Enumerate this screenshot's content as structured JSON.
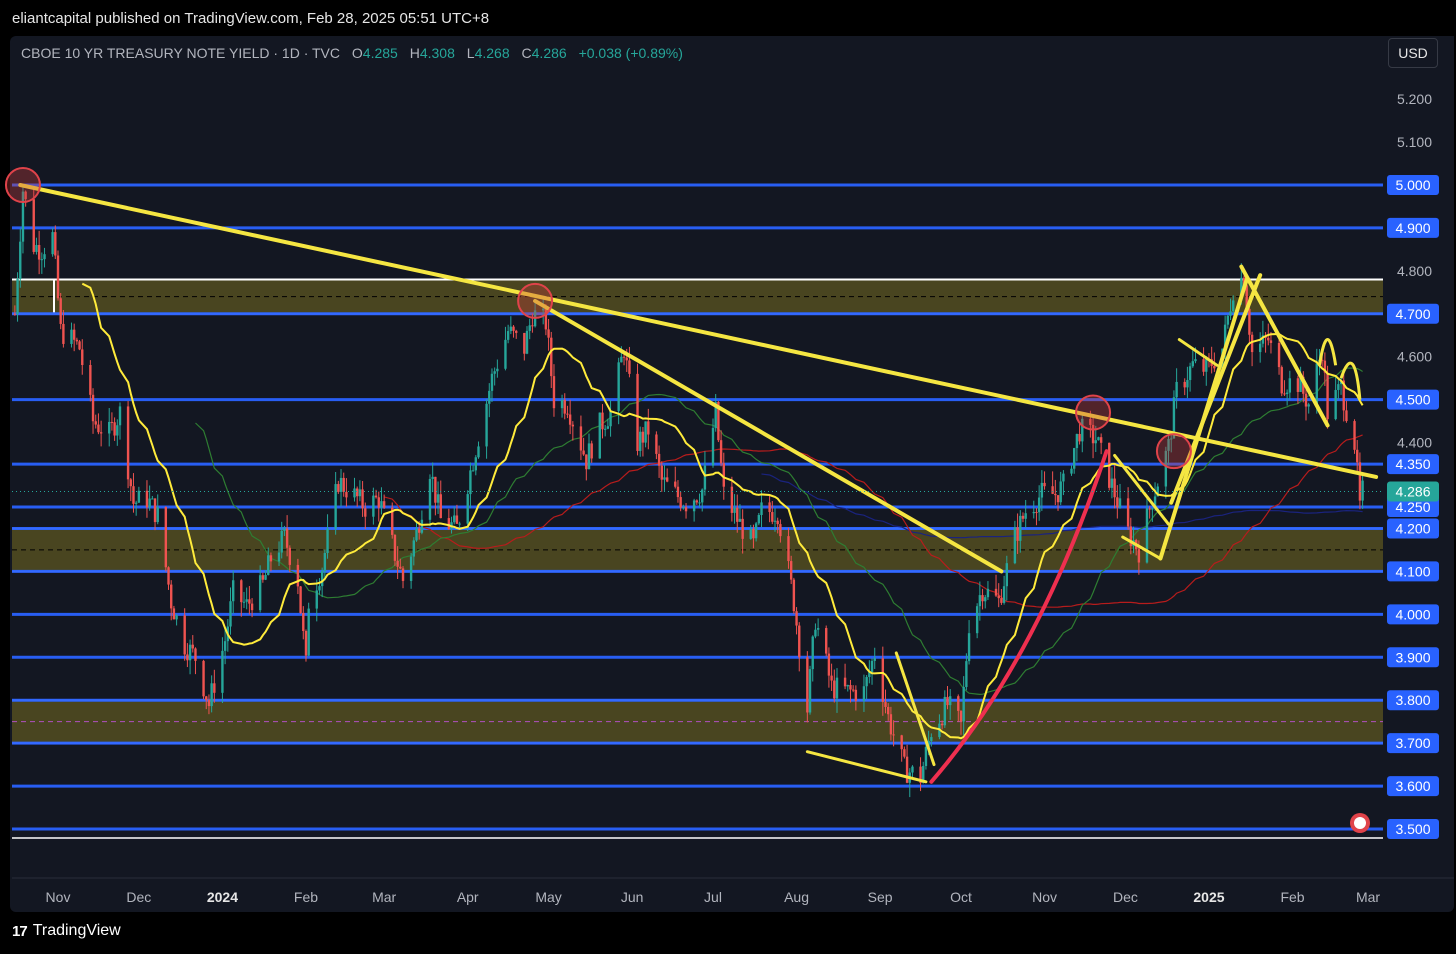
{
  "header": {
    "publisher_line": "eliantcapital published on TradingView.com, Feb 28, 2025 05:51 UTC+8"
  },
  "legend": {
    "symbol": "CBOE 10 YR TREASURY NOTE YIELD · 1D · TVC",
    "o_label": "O",
    "o_value": "4.285",
    "h_label": "H",
    "h_value": "4.308",
    "l_label": "L",
    "l_value": "4.268",
    "c_label": "C",
    "c_value": "4.286",
    "change": "+0.038 (+0.89%)"
  },
  "currency_button": "USD",
  "footer": {
    "brand": "TradingView",
    "logo_glyph": "17"
  },
  "colors": {
    "background": "#131722",
    "level_line": "#2962ff",
    "zone_fill": "#5c5520",
    "trendline": "#f5e642",
    "up_candle": "#26a69a",
    "down_candle": "#ef5350",
    "ma_yellow": "#ffeb3b",
    "ma_green": "#2e7d32",
    "ma_red": "#b71c1c",
    "ma_blue": "#1a237e",
    "price_tag": "#2962ff",
    "last_price_tag": "#26a69a"
  },
  "chart_data": {
    "type": "candlestick",
    "instrument": "CBOE 10 YR TREASURY NOTE YIELD",
    "interval": "1D",
    "y_range": [
      3.47,
      5.34
    ],
    "x_range": [
      "2023-10-15",
      "2025-03-05"
    ],
    "x_ticks": [
      {
        "label": "Nov",
        "date": "2023-11-01"
      },
      {
        "label": "Dec",
        "date": "2023-12-01"
      },
      {
        "label": "2024",
        "date": "2024-01-01"
      },
      {
        "label": "Feb",
        "date": "2024-02-01"
      },
      {
        "label": "Mar",
        "date": "2024-03-01"
      },
      {
        "label": "Apr",
        "date": "2024-04-01"
      },
      {
        "label": "May",
        "date": "2024-05-01"
      },
      {
        "label": "Jun",
        "date": "2024-06-01"
      },
      {
        "label": "Jul",
        "date": "2024-07-01"
      },
      {
        "label": "Aug",
        "date": "2024-08-01"
      },
      {
        "label": "Sep",
        "date": "2024-09-01"
      },
      {
        "label": "Oct",
        "date": "2024-10-01"
      },
      {
        "label": "Nov",
        "date": "2024-11-01"
      },
      {
        "label": "Dec",
        "date": "2024-12-01"
      },
      {
        "label": "2025",
        "date": "2025-01-01"
      },
      {
        "label": "Feb",
        "date": "2025-02-01"
      },
      {
        "label": "Mar",
        "date": "2025-03-01"
      }
    ],
    "y_ticks": [
      "5.200",
      "5.100",
      "4.800",
      "4.600",
      "4.400"
    ],
    "level_tags": [
      "5.000",
      "4.900",
      "4.700",
      "4.500",
      "4.350",
      "4.250",
      "4.200",
      "4.100",
      "4.000",
      "3.900",
      "3.800",
      "3.700",
      "3.600",
      "3.500"
    ],
    "last_price": "4.286",
    "levels": [
      5.0,
      4.9,
      4.7,
      4.5,
      4.35,
      4.25,
      4.2,
      4.1,
      4.0,
      3.9,
      3.8,
      3.7,
      3.6,
      3.5
    ],
    "zones": [
      {
        "from": 4.7,
        "to": 4.78,
        "mid": 4.74
      },
      {
        "from": 4.1,
        "to": 4.2,
        "mid": 4.15
      },
      {
        "from": 3.7,
        "to": 3.8,
        "mid": 3.75
      }
    ],
    "series": [
      {
        "type": "close",
        "points": [
          [
            "2023-10-16",
            4.7
          ],
          [
            "2023-10-19",
            4.99
          ],
          [
            "2023-10-23",
            4.86
          ],
          [
            "2023-10-26",
            4.85
          ],
          [
            "2023-10-30",
            4.88
          ],
          [
            "2023-11-02",
            4.66
          ],
          [
            "2023-11-06",
            4.64
          ],
          [
            "2023-11-09",
            4.62
          ],
          [
            "2023-11-14",
            4.45
          ],
          [
            "2023-11-20",
            4.42
          ],
          [
            "2023-11-24",
            4.47
          ],
          [
            "2023-11-29",
            4.26
          ],
          [
            "2023-12-04",
            4.27
          ],
          [
            "2023-12-08",
            4.23
          ],
          [
            "2023-12-13",
            4.03
          ],
          [
            "2023-12-18",
            3.93
          ],
          [
            "2023-12-22",
            3.9
          ],
          [
            "2023-12-27",
            3.79
          ],
          [
            "2024-01-02",
            3.94
          ],
          [
            "2024-01-05",
            4.05
          ],
          [
            "2024-01-10",
            4.02
          ],
          [
            "2024-01-16",
            4.07
          ],
          [
            "2024-01-19",
            4.13
          ],
          [
            "2024-01-24",
            4.18
          ],
          [
            "2024-01-29",
            4.08
          ],
          [
            "2024-02-01",
            3.88
          ],
          [
            "2024-02-02",
            4.03
          ],
          [
            "2024-02-07",
            4.11
          ],
          [
            "2024-02-13",
            4.31
          ],
          [
            "2024-02-20",
            4.27
          ],
          [
            "2024-02-23",
            4.25
          ],
          [
            "2024-02-28",
            4.27
          ],
          [
            "2024-03-05",
            4.14
          ],
          [
            "2024-03-08",
            4.08
          ],
          [
            "2024-03-13",
            4.19
          ],
          [
            "2024-03-18",
            4.34
          ],
          [
            "2024-03-22",
            4.22
          ],
          [
            "2024-03-28",
            4.2
          ],
          [
            "2024-04-03",
            4.36
          ],
          [
            "2024-04-10",
            4.55
          ],
          [
            "2024-04-16",
            4.66
          ],
          [
            "2024-04-22",
            4.62
          ],
          [
            "2024-04-25",
            4.7
          ],
          [
            "2024-04-30",
            4.68
          ],
          [
            "2024-05-03",
            4.5
          ],
          [
            "2024-05-08",
            4.49
          ],
          [
            "2024-05-15",
            4.36
          ],
          [
            "2024-05-20",
            4.44
          ],
          [
            "2024-05-24",
            4.47
          ],
          [
            "2024-05-29",
            4.62
          ],
          [
            "2024-06-03",
            4.4
          ],
          [
            "2024-06-07",
            4.43
          ],
          [
            "2024-06-12",
            4.31
          ],
          [
            "2024-06-17",
            4.28
          ],
          [
            "2024-06-21",
            4.26
          ],
          [
            "2024-06-27",
            4.29
          ],
          [
            "2024-07-02",
            4.47
          ],
          [
            "2024-07-05",
            4.28
          ],
          [
            "2024-07-11",
            4.21
          ],
          [
            "2024-07-16",
            4.16
          ],
          [
            "2024-07-19",
            4.24
          ],
          [
            "2024-07-25",
            4.24
          ],
          [
            "2024-07-31",
            4.03
          ],
          [
            "2024-08-05",
            3.78
          ],
          [
            "2024-08-08",
            3.99
          ],
          [
            "2024-08-14",
            3.83
          ],
          [
            "2024-08-20",
            3.82
          ],
          [
            "2024-08-26",
            3.82
          ],
          [
            "2024-08-30",
            3.91
          ],
          [
            "2024-09-04",
            3.76
          ],
          [
            "2024-09-10",
            3.64
          ],
          [
            "2024-09-16",
            3.62
          ],
          [
            "2024-09-20",
            3.73
          ],
          [
            "2024-09-26",
            3.79
          ],
          [
            "2024-10-01",
            3.74
          ],
          [
            "2024-10-04",
            3.98
          ],
          [
            "2024-10-09",
            4.06
          ],
          [
            "2024-10-15",
            4.03
          ],
          [
            "2024-10-21",
            4.18
          ],
          [
            "2024-10-25",
            4.24
          ],
          [
            "2024-10-31",
            4.28
          ],
          [
            "2024-11-05",
            4.28
          ],
          [
            "2024-11-08",
            4.3
          ],
          [
            "2024-11-14",
            4.43
          ],
          [
            "2024-11-20",
            4.41
          ],
          [
            "2024-11-26",
            4.3
          ],
          [
            "2024-12-02",
            4.19
          ],
          [
            "2024-12-06",
            4.15
          ],
          [
            "2024-12-11",
            4.27
          ],
          [
            "2024-12-17",
            4.39
          ],
          [
            "2024-12-20",
            4.52
          ],
          [
            "2024-12-26",
            4.58
          ],
          [
            "2024-12-31",
            4.57
          ],
          [
            "2025-01-06",
            4.62
          ],
          [
            "2025-01-10",
            4.76
          ],
          [
            "2025-01-14",
            4.79
          ],
          [
            "2025-01-17",
            4.61
          ],
          [
            "2025-01-23",
            4.64
          ],
          [
            "2025-01-28",
            4.54
          ],
          [
            "2025-02-03",
            4.54
          ],
          [
            "2025-02-07",
            4.49
          ],
          [
            "2025-02-12",
            4.62
          ],
          [
            "2025-02-14",
            4.47
          ],
          [
            "2025-02-19",
            4.53
          ],
          [
            "2025-02-24",
            4.4
          ],
          [
            "2025-02-26",
            4.25
          ],
          [
            "2025-02-27",
            4.286
          ]
        ]
      }
    ]
  }
}
